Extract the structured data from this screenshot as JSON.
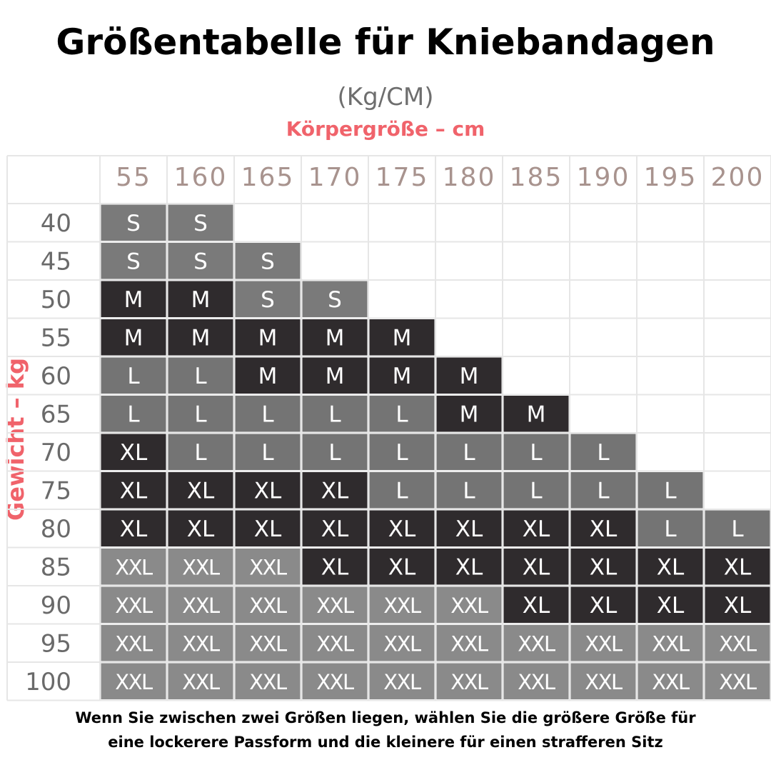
{
  "chart_data": {
    "type": "table",
    "title": "Größentabelle für Kniebandagen",
    "unit_label": "(Kg/CM)",
    "xlabel": "Körpergröße – cm",
    "ylabel": "Gewicht – kg",
    "heights": [
      "55",
      "160",
      "165",
      "170",
      "175",
      "180",
      "185",
      "190",
      "195",
      "200"
    ],
    "weights": [
      "40",
      "45",
      "50",
      "55",
      "60",
      "65",
      "70",
      "75",
      "80",
      "85",
      "90",
      "95",
      "100"
    ],
    "sizes": [
      [
        "S",
        "S",
        "",
        "",
        "",
        "",
        "",
        "",
        "",
        ""
      ],
      [
        "S",
        "S",
        "S",
        "",
        "",
        "",
        "",
        "",
        "",
        ""
      ],
      [
        "M",
        "M",
        "S",
        "S",
        "",
        "",
        "",
        "",
        "",
        ""
      ],
      [
        "M",
        "M",
        "M",
        "M",
        "M",
        "",
        "",
        "",
        "",
        ""
      ],
      [
        "L",
        "L",
        "M",
        "M",
        "M",
        "M",
        "",
        "",
        "",
        ""
      ],
      [
        "L",
        "L",
        "L",
        "L",
        "L",
        "M",
        "M",
        "",
        "",
        ""
      ],
      [
        "XL",
        "L",
        "L",
        "L",
        "L",
        "L",
        "L",
        "L",
        "",
        ""
      ],
      [
        "XL",
        "XL",
        "XL",
        "XL",
        "L",
        "L",
        "L",
        "L",
        "L",
        ""
      ],
      [
        "XL",
        "XL",
        "XL",
        "XL",
        "XL",
        "XL",
        "XL",
        "XL",
        "L",
        "L"
      ],
      [
        "XXL",
        "XXL",
        "XXL",
        "XL",
        "XL",
        "XL",
        "XL",
        "XL",
        "XL",
        "XL"
      ],
      [
        "XXL",
        "XXL",
        "XXL",
        "XXL",
        "XXL",
        "XXL",
        "XL",
        "XL",
        "XL",
        "XL"
      ],
      [
        "XXL",
        "XXL",
        "XXL",
        "XXL",
        "XXL",
        "XXL",
        "XXL",
        "XXL",
        "XXL",
        "XXL"
      ],
      [
        "XXL",
        "XXL",
        "XXL",
        "XXL",
        "XXL",
        "XXL",
        "XXL",
        "XXL",
        "XXL",
        "XXL"
      ]
    ],
    "size_colors": {
      "S": "#7a7a7a",
      "M": "#2f2b2d",
      "L": "#747474",
      "XL": "#2f2b2d",
      "XXL": "#8a8a8a"
    },
    "header_color": "#a8938e",
    "label_color": "#6a6a6a",
    "axis_label_color": "#f0636b"
  },
  "note": {
    "line1": "Wenn Sie zwischen zwei Größen liegen, wählen Sie die größere Größe für",
    "line2": "eine lockerere Passform und die kleinere für einen strafferen Sitz"
  }
}
